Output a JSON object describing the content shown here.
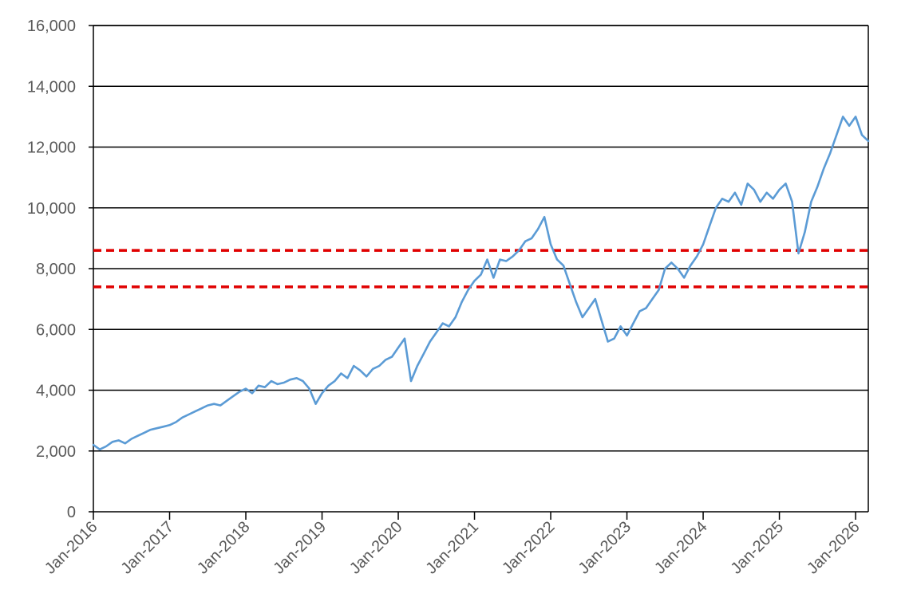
{
  "chart_data": {
    "type": "line",
    "title": "",
    "xlabel": "",
    "ylabel": "",
    "ylim": [
      0,
      16000
    ],
    "yticks": [
      0,
      2000,
      4000,
      6000,
      8000,
      10000,
      12000,
      14000,
      16000
    ],
    "ytick_labels": [
      "0",
      "2,000",
      "4,000",
      "6,000",
      "8,000",
      "10,000",
      "12,000",
      "14,000",
      "16,000"
    ],
    "xlim": [
      "2016-01",
      "2026-03"
    ],
    "xticks": [
      "2016-01",
      "2017-01",
      "2018-01",
      "2019-01",
      "2020-01",
      "2021-01",
      "2022-01",
      "2023-01",
      "2024-01",
      "2025-01",
      "2026-01"
    ],
    "xtick_labels": [
      "Jan-2016",
      "Jan-2017",
      "Jan-2018",
      "Jan-2019",
      "Jan-2020",
      "Jan-2021",
      "Jan-2022",
      "Jan-2023",
      "Jan-2024",
      "Jan-2025",
      "Jan-2026"
    ],
    "grid": "horizontal",
    "legend": "none",
    "series": [
      {
        "color": "#5B9BD5",
        "x": [
          "2016-01",
          "2016-02",
          "2016-03",
          "2016-04",
          "2016-05",
          "2016-06",
          "2016-07",
          "2016-08",
          "2016-09",
          "2016-10",
          "2016-11",
          "2016-12",
          "2017-01",
          "2017-02",
          "2017-03",
          "2017-04",
          "2017-05",
          "2017-06",
          "2017-07",
          "2017-08",
          "2017-09",
          "2017-10",
          "2017-11",
          "2017-12",
          "2018-01",
          "2018-02",
          "2018-03",
          "2018-04",
          "2018-05",
          "2018-06",
          "2018-07",
          "2018-08",
          "2018-09",
          "2018-10",
          "2018-11",
          "2018-12",
          "2019-01",
          "2019-02",
          "2019-03",
          "2019-04",
          "2019-05",
          "2019-06",
          "2019-07",
          "2019-08",
          "2019-09",
          "2019-10",
          "2019-11",
          "2019-12",
          "2020-01",
          "2020-02",
          "2020-03",
          "2020-04",
          "2020-05",
          "2020-06",
          "2020-07",
          "2020-08",
          "2020-09",
          "2020-10",
          "2020-11",
          "2020-12",
          "2021-01",
          "2021-02",
          "2021-03",
          "2021-04",
          "2021-05",
          "2021-06",
          "2021-07",
          "2021-08",
          "2021-09",
          "2021-10",
          "2021-11",
          "2021-12",
          "2022-01",
          "2022-02",
          "2022-03",
          "2022-04",
          "2022-05",
          "2022-06",
          "2022-07",
          "2022-08",
          "2022-09",
          "2022-10",
          "2022-11",
          "2022-12",
          "2023-01",
          "2023-02",
          "2023-03",
          "2023-04",
          "2023-05",
          "2023-06",
          "2023-07",
          "2023-08",
          "2023-09",
          "2023-10",
          "2023-11",
          "2023-12",
          "2024-01",
          "2024-02",
          "2024-03",
          "2024-04",
          "2024-05",
          "2024-06",
          "2024-07",
          "2024-08",
          "2024-09",
          "2024-10",
          "2024-11",
          "2024-12",
          "2025-01",
          "2025-02",
          "2025-03",
          "2025-04",
          "2025-05",
          "2025-06",
          "2025-07",
          "2025-08",
          "2025-09",
          "2025-10",
          "2025-11",
          "2025-12",
          "2026-01",
          "2026-02",
          "2026-03"
        ],
        "y": [
          2200,
          2050,
          2150,
          2300,
          2350,
          2250,
          2400,
          2500,
          2600,
          2700,
          2750,
          2800,
          2850,
          2950,
          3100,
          3200,
          3300,
          3400,
          3500,
          3550,
          3500,
          3650,
          3800,
          3950,
          4050,
          3900,
          4150,
          4100,
          4300,
          4200,
          4250,
          4350,
          4400,
          4300,
          4050,
          3550,
          3900,
          4150,
          4300,
          4550,
          4400,
          4800,
          4650,
          4450,
          4700,
          4800,
          5000,
          5100,
          5400,
          5700,
          4300,
          4800,
          5200,
          5600,
          5900,
          6200,
          6100,
          6400,
          6900,
          7300,
          7600,
          7800,
          8300,
          7700,
          8300,
          8250,
          8400,
          8600,
          8900,
          9000,
          9300,
          9700,
          8800,
          8300,
          8100,
          7500,
          6900,
          6400,
          6700,
          7000,
          6300,
          5600,
          5700,
          6100,
          5800,
          6200,
          6600,
          6700,
          7000,
          7300,
          8000,
          8200,
          8000,
          7700,
          8100,
          8400,
          8800,
          9400,
          10000,
          10300,
          10200,
          10500,
          10100,
          10800,
          10600,
          10200,
          10500,
          10300,
          10600,
          10800,
          10200,
          8500,
          9200,
          10200,
          10700,
          11300,
          11800,
          12400,
          13000,
          12700,
          13000,
          12400,
          12200
        ]
      }
    ],
    "reference_lines": [
      {
        "y": 8600,
        "color": "#E00000",
        "style": "dashed"
      },
      {
        "y": 7400,
        "color": "#E00000",
        "style": "dashed"
      }
    ]
  }
}
